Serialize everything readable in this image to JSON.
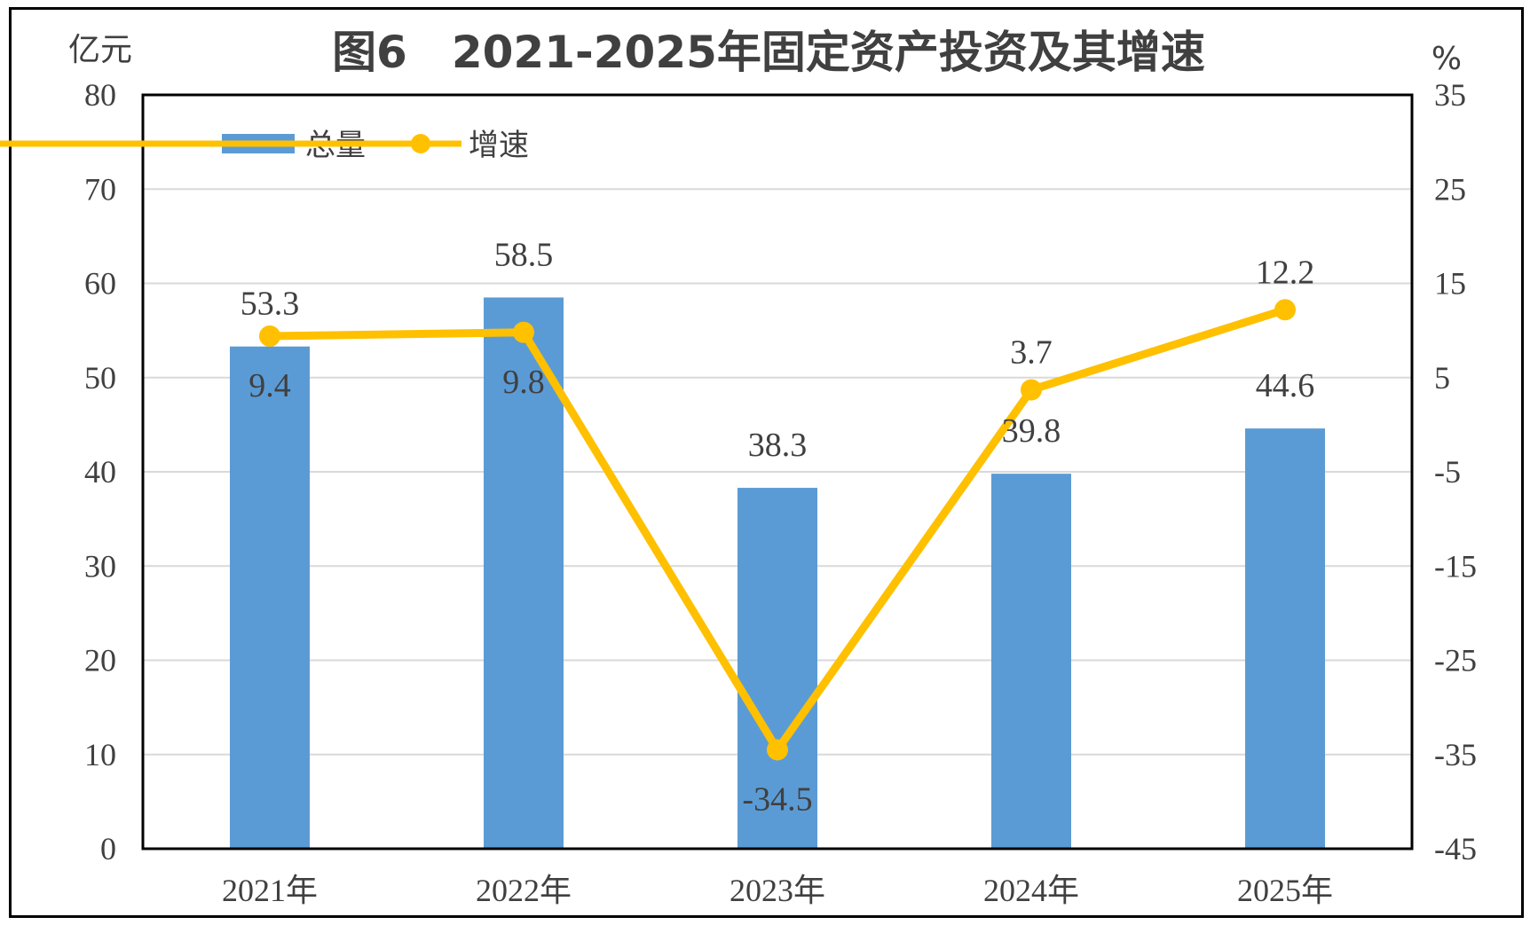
{
  "chart_data": {
    "type": "bar",
    "title": "图6　2021-2025年固定资产投资及其增速",
    "y_left_unit": "亿元",
    "y_right_unit": "%",
    "categories": [
      "2021年",
      "2022年",
      "2023年",
      "2024年",
      "2025年"
    ],
    "series": [
      {
        "name": "总量",
        "type": "bar",
        "axis": "left",
        "color": "#5B9BD5",
        "values": [
          53.3,
          58.5,
          38.3,
          39.8,
          44.6
        ]
      },
      {
        "name": "增速",
        "type": "line",
        "axis": "right",
        "color": "#FFC000",
        "values": [
          9.4,
          9.8,
          -34.5,
          3.7,
          12.2
        ]
      }
    ],
    "ylim_left": [
      0,
      80
    ],
    "ylim_right": [
      -45,
      35
    ],
    "yticks_left": [
      "0",
      "10",
      "20",
      "30",
      "40",
      "50",
      "60",
      "70",
      "80"
    ],
    "yticks_right": [
      "-45",
      "-35",
      "-25",
      "-15",
      "-5",
      "5",
      "15",
      "25",
      "35"
    ],
    "grid": true,
    "legend_position": "top-left"
  }
}
